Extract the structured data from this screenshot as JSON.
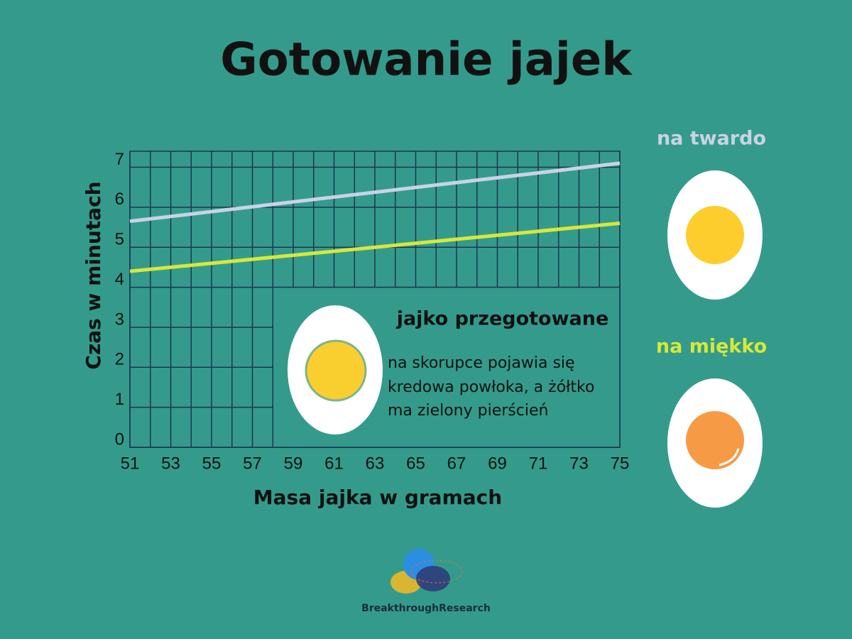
{
  "chart_data": {
    "type": "line",
    "title": "Gotowanie jajek",
    "x_label": "Masa jajka w gramach",
    "y_label": "Czas w minutach",
    "x": [
      51,
      75
    ],
    "series": [
      {
        "name": "na twardo",
        "color": "#c9d3e6",
        "values": [
          5.65,
          7.1
        ]
      },
      {
        "name": "na miękko",
        "color": "#d6e83c",
        "values": [
          4.4,
          5.6
        ]
      }
    ],
    "xlim": [
      51,
      75
    ],
    "ylim": [
      0,
      7.4
    ],
    "xticks": [
      51,
      53,
      55,
      57,
      59,
      61,
      63,
      65,
      67,
      69,
      71,
      73,
      75
    ],
    "yticks": [
      0,
      1,
      2,
      3,
      4,
      5,
      6,
      7
    ],
    "grid": true,
    "annotation": {
      "title": "jajko przegotowane",
      "lines": [
        "na skorupce pojawia się",
        "kredowa powłoka, a żółtko",
        "ma zielony pierścień"
      ]
    },
    "logo": "BreakthroughResearch"
  }
}
